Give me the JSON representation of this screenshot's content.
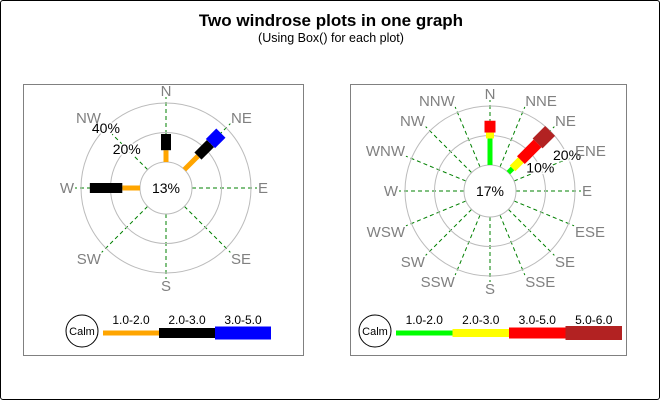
{
  "header": {
    "title": "Two windrose plots in one graph",
    "subtitle": "(Using Box() for each plot)"
  },
  "chart_data": [
    {
      "type": "windrose",
      "name": "left-windrose",
      "directions": [
        "N",
        "NE",
        "E",
        "SE",
        "S",
        "SW",
        "W",
        "NW"
      ],
      "axis_max": 40,
      "rings": [
        {
          "value": 20,
          "label": "20%"
        },
        {
          "value": 40,
          "label": "40%"
        }
      ],
      "ring_label_angle_deg": 315,
      "calm": {
        "label": "Calm",
        "value_label": "13%",
        "value_pct": 13
      },
      "speed_bins": [
        {
          "label": "1.0-2.0",
          "color": "#FFA500"
        },
        {
          "label": "2.0-3.0",
          "color": "#000000"
        },
        {
          "label": "3.0-5.0",
          "color": "#0000FF"
        }
      ],
      "spokes": [
        {
          "direction": "N",
          "values_pct": [
            8,
            11,
            0
          ]
        },
        {
          "direction": "NE",
          "values_pct": [
            13,
            12,
            10
          ]
        },
        {
          "direction": "W",
          "values_pct": [
            12,
            22,
            0
          ]
        }
      ],
      "grid_color": "#BBBBBB",
      "spoke_guide_color": "#008000",
      "direction_label_color": "#808080"
    },
    {
      "type": "windrose",
      "name": "right-windrose",
      "directions": [
        "N",
        "NNE",
        "NE",
        "ENE",
        "E",
        "ESE",
        "SE",
        "SSE",
        "S",
        "SSW",
        "SW",
        "WSW",
        "W",
        "WNW",
        "NW",
        "NNW"
      ],
      "axis_max": 20,
      "rings": [
        {
          "value": 10,
          "label": "10%"
        },
        {
          "value": 20,
          "label": "20%"
        }
      ],
      "ring_label_angle_deg": 65,
      "calm": {
        "label": "Calm",
        "value_label": "17%",
        "value_pct": 17
      },
      "speed_bins": [
        {
          "label": "1.0-2.0",
          "color": "#00FF00"
        },
        {
          "label": "2.0-3.0",
          "color": "#FFFF00"
        },
        {
          "label": "3.0-5.0",
          "color": "#FF0000"
        },
        {
          "label": "5.0-6.0",
          "color": "#B22222"
        }
      ],
      "spokes": [
        {
          "direction": "N",
          "values_pct": [
            9,
            2,
            4,
            0
          ]
        },
        {
          "direction": "NE",
          "values_pct": [
            2,
            4,
            8,
            6
          ]
        }
      ],
      "grid_color": "#BBBBBB",
      "spoke_guide_color": "#008000",
      "direction_label_color": "#808080"
    }
  ]
}
